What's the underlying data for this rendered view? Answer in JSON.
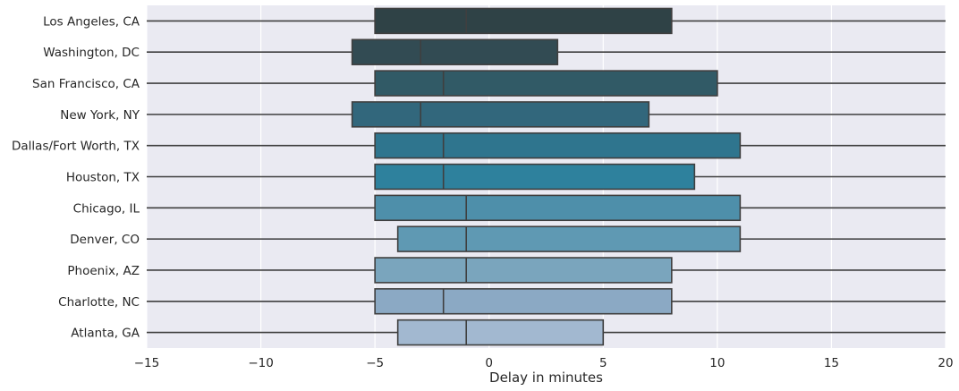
{
  "chart_data": {
    "type": "boxplot",
    "orientation": "horizontal",
    "title": "",
    "xlabel": "Delay in minutes",
    "ylabel": "",
    "xlim": [
      -15,
      20
    ],
    "xticks": [
      -15,
      -10,
      -5,
      0,
      5,
      10,
      15,
      20
    ],
    "xtick_labels": [
      "−15",
      "−10",
      "−5",
      "0",
      "5",
      "10",
      "15",
      "20"
    ],
    "grid": "vertical",
    "background_color": "#eaeaf2",
    "categories": [
      "Los Angeles, CA",
      "Washington, DC",
      "San Francisco, CA",
      "New York, NY",
      "Dallas/Fort Worth, TX",
      "Houston, TX",
      "Chicago, IL",
      "Denver, CO",
      "Phoenix, AZ",
      "Charlotte, NC",
      "Atlanta, GA"
    ],
    "boxes": [
      {
        "q1": -5,
        "median": -1,
        "q3": 8,
        "color": "#2f4246"
      },
      {
        "q1": -6,
        "median": -3,
        "q3": 3,
        "color": "#324b53"
      },
      {
        "q1": -5,
        "median": -2,
        "q3": 10,
        "color": "#315a66"
      },
      {
        "q1": -6,
        "median": -3,
        "q3": 7,
        "color": "#32677c"
      },
      {
        "q1": -5,
        "median": -2,
        "q3": 11,
        "color": "#2f758e"
      },
      {
        "q1": -5,
        "median": -2,
        "q3": 9,
        "color": "#2e819d"
      },
      {
        "q1": -5,
        "median": -1,
        "q3": 11,
        "color": "#4e8faa"
      },
      {
        "q1": -4,
        "median": -1,
        "q3": 11,
        "color": "#5f99b3"
      },
      {
        "q1": -5,
        "median": -1,
        "q3": 8,
        "color": "#7aa5bd"
      },
      {
        "q1": -5,
        "median": -2,
        "q3": 8,
        "color": "#8ba9c4"
      },
      {
        "q1": -4,
        "median": -1,
        "q3": 5,
        "color": "#a2b8d0"
      }
    ]
  }
}
